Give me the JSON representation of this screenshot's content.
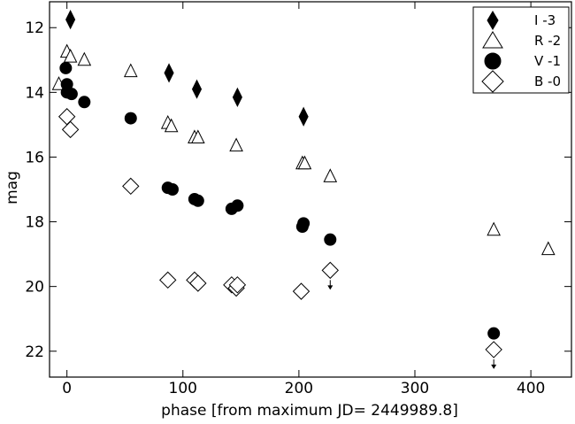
{
  "chart_data": {
    "type": "scatter",
    "xlabel": "phase [from maximum JD= 2449989.8]",
    "ylabel": "mag",
    "xlim": [
      -15,
      435
    ],
    "ylim": [
      22.8,
      11.2
    ],
    "y_inverted": true,
    "grid": false,
    "legend_position": "top-right",
    "x_ticks": [
      0,
      100,
      200,
      300,
      400
    ],
    "y_ticks": [
      12,
      14,
      16,
      18,
      20,
      22
    ],
    "series": [
      {
        "name": "I -3",
        "marker": "filled-diamond",
        "points": [
          {
            "x": 3,
            "y": 11.75
          },
          {
            "x": 88,
            "y": 13.4
          },
          {
            "x": 112,
            "y": 13.9
          },
          {
            "x": 147,
            "y": 14.15
          },
          {
            "x": 204,
            "y": 14.75
          }
        ]
      },
      {
        "name": "R -2",
        "marker": "open-triangle",
        "points": [
          {
            "x": -7,
            "y": 13.75
          },
          {
            "x": 0,
            "y": 12.75
          },
          {
            "x": 3,
            "y": 12.9
          },
          {
            "x": 15,
            "y": 13.0
          },
          {
            "x": 55,
            "y": 13.35
          },
          {
            "x": 87,
            "y": 14.95
          },
          {
            "x": 90,
            "y": 15.05
          },
          {
            "x": 110,
            "y": 15.4
          },
          {
            "x": 113,
            "y": 15.4
          },
          {
            "x": 146,
            "y": 15.65
          },
          {
            "x": 203,
            "y": 16.2
          },
          {
            "x": 205,
            "y": 16.2
          },
          {
            "x": 227,
            "y": 16.6
          },
          {
            "x": 368,
            "y": 18.25
          },
          {
            "x": 415,
            "y": 18.85
          }
        ]
      },
      {
        "name": "V -1",
        "marker": "filled-circle",
        "points": [
          {
            "x": -1,
            "y": 13.25
          },
          {
            "x": 0,
            "y": 13.75
          },
          {
            "x": 0,
            "y": 14.0
          },
          {
            "x": 4,
            "y": 14.05
          },
          {
            "x": 15,
            "y": 14.3
          },
          {
            "x": 55,
            "y": 14.8
          },
          {
            "x": 87,
            "y": 16.95
          },
          {
            "x": 91,
            "y": 17.0
          },
          {
            "x": 110,
            "y": 17.3
          },
          {
            "x": 113,
            "y": 17.35
          },
          {
            "x": 142,
            "y": 17.6
          },
          {
            "x": 147,
            "y": 17.5
          },
          {
            "x": 203,
            "y": 18.15
          },
          {
            "x": 204,
            "y": 18.05
          },
          {
            "x": 227,
            "y": 18.55
          },
          {
            "x": 368,
            "y": 21.45
          }
        ]
      },
      {
        "name": "B -0",
        "marker": "open-diamond",
        "points": [
          {
            "x": 0,
            "y": 14.75
          },
          {
            "x": 3,
            "y": 15.15
          },
          {
            "x": 55,
            "y": 16.9
          },
          {
            "x": 87,
            "y": 19.8
          },
          {
            "x": 110,
            "y": 19.8
          },
          {
            "x": 113,
            "y": 19.9
          },
          {
            "x": 142,
            "y": 19.95
          },
          {
            "x": 146,
            "y": 20.05
          },
          {
            "x": 147,
            "y": 19.95
          },
          {
            "x": 202,
            "y": 20.15
          },
          {
            "x": 227,
            "y": 19.5,
            "upper_limit": true
          },
          {
            "x": 368,
            "y": 21.95,
            "upper_limit": true
          }
        ]
      }
    ]
  }
}
